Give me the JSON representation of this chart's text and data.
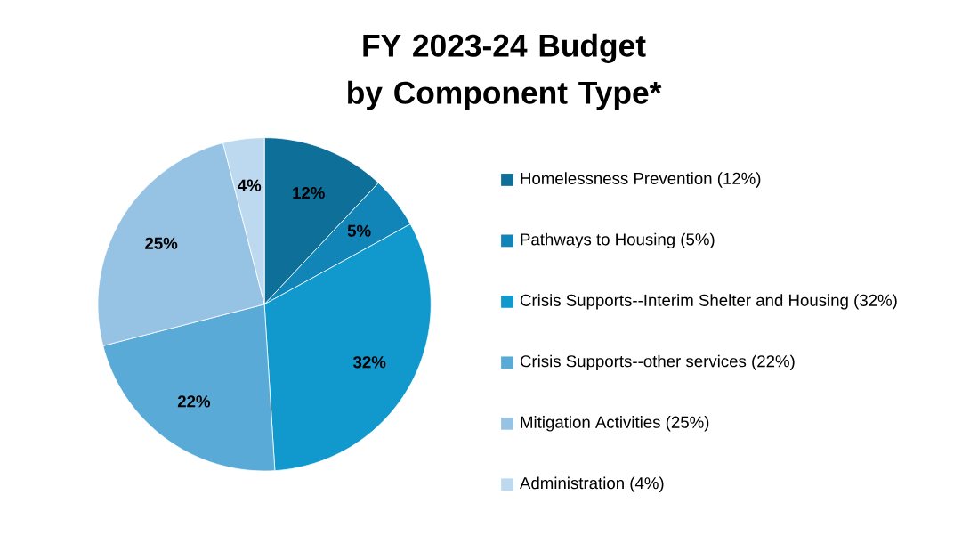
{
  "chart_data": {
    "type": "pie",
    "title": "FY 2023-24 Budget by Component Type*",
    "categories": [
      "Homelessness Prevention (12%)",
      "Pathways to Housing (5%)",
      "Crisis Supports--Interim Shelter and Housing (32%)",
      "Crisis Supports--other services (22%)",
      "Mitigation  Activities (25%)",
      "Administration (4%)"
    ],
    "values": [
      12,
      5,
      32,
      22,
      25,
      4
    ],
    "value_labels": [
      "12%",
      "5%",
      "32%",
      "22%",
      "25%",
      "4%"
    ],
    "colors": [
      "#0e6f98",
      "#1185b8",
      "#1198cc",
      "#5aaad8",
      "#96c3e4",
      "#bdd9ef"
    ],
    "legend": "right"
  }
}
